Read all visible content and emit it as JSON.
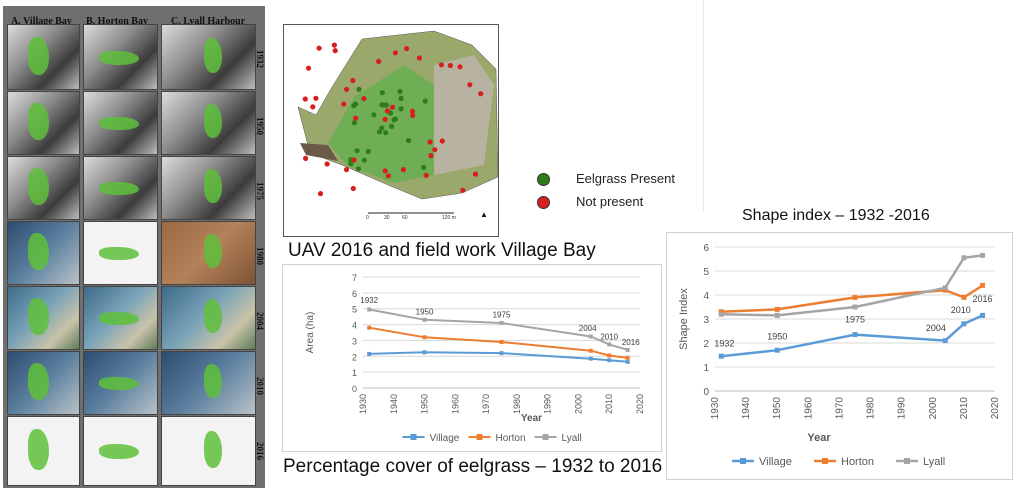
{
  "panels": {
    "col_titles": [
      "A. Village Bay",
      "B. Horton Bay",
      "C. Lyall Harbour"
    ],
    "years": [
      "1932",
      "1950",
      "1975",
      "1980",
      "2004",
      "2010",
      "2016"
    ]
  },
  "uav": {
    "legend_present": "Eelgrass Present",
    "legend_absent": "Not present",
    "present_color": "#2e7d1a",
    "absent_color": "#d62020",
    "scale_labels": [
      "0",
      "30",
      "60",
      "120 m"
    ],
    "caption": "UAV 2016 and field work Village Bay"
  },
  "area_chart": {
    "caption": "Percentage cover of eelgrass – 1932 to 2016",
    "chart_data": {
      "type": "line",
      "ylabel": "Area (ha)",
      "xlabel": "Year",
      "xlim": [
        1930,
        2020
      ],
      "ylim": [
        0,
        7
      ],
      "xticks": [
        1930,
        1940,
        1950,
        1960,
        1970,
        1980,
        1990,
        2000,
        2010,
        2020
      ],
      "yticks": [
        0,
        1,
        2,
        3,
        4,
        5,
        6,
        7
      ],
      "legend": "bottom",
      "series": [
        {
          "name": "Village",
          "color": "#5b9bd5",
          "x": [
            1932,
            1950,
            1975,
            2004,
            2010,
            2016
          ],
          "y": [
            2.15,
            2.25,
            2.2,
            1.85,
            1.75,
            1.65
          ]
        },
        {
          "name": "Horton",
          "color": "#ed7d31",
          "x": [
            1932,
            1950,
            1975,
            2004,
            2010,
            2016
          ],
          "y": [
            3.8,
            3.2,
            2.9,
            2.35,
            2.05,
            1.9
          ]
        },
        {
          "name": "Lyall",
          "color": "#a5a5a5",
          "x": [
            1932,
            1950,
            1975,
            2004,
            2010,
            2016
          ],
          "y": [
            4.95,
            4.3,
            4.1,
            3.25,
            2.75,
            2.4
          ]
        }
      ],
      "annotations": [
        {
          "text": "1932",
          "x": 1932,
          "y": 5.35
        },
        {
          "text": "1950",
          "x": 1950,
          "y": 4.65
        },
        {
          "text": "1975",
          "x": 1975,
          "y": 4.45
        },
        {
          "text": "2004",
          "x": 2003,
          "y": 3.6
        },
        {
          "text": "2010",
          "x": 2010,
          "y": 3.05
        },
        {
          "text": "2016",
          "x": 2017,
          "y": 2.7
        }
      ]
    }
  },
  "shape_chart": {
    "caption": "Shape index – 1932 -2016",
    "chart_data": {
      "type": "line",
      "ylabel": "Shape Index",
      "xlabel": "Year",
      "xlim": [
        1930,
        2020
      ],
      "ylim": [
        0,
        6
      ],
      "xticks": [
        1930,
        1940,
        1950,
        1960,
        1970,
        1980,
        1990,
        2000,
        2010,
        2020
      ],
      "yticks": [
        0,
        1,
        2,
        3,
        4,
        5,
        6
      ],
      "legend": "bottom",
      "series": [
        {
          "name": "Village",
          "color": "#5b9bd5",
          "x": [
            1932,
            1950,
            1975,
            2004,
            2010,
            2016
          ],
          "y": [
            1.45,
            1.7,
            2.35,
            2.1,
            2.8,
            3.15
          ]
        },
        {
          "name": "Horton",
          "color": "#ed7d31",
          "x": [
            1932,
            1950,
            1975,
            2004,
            2010,
            2016
          ],
          "y": [
            3.3,
            3.4,
            3.9,
            4.2,
            3.9,
            4.4
          ]
        },
        {
          "name": "Lyall",
          "color": "#a5a5a5",
          "x": [
            1932,
            1950,
            1975,
            2004,
            2010,
            2016
          ],
          "y": [
            3.2,
            3.15,
            3.5,
            4.3,
            5.55,
            5.65
          ]
        }
      ],
      "annotations": [
        {
          "text": "1932",
          "x": 1933,
          "y": 1.85
        },
        {
          "text": "1950",
          "x": 1950,
          "y": 2.15
        },
        {
          "text": "1975",
          "x": 1975,
          "y": 2.85
        },
        {
          "text": "2004",
          "x": 2001,
          "y": 2.5
        },
        {
          "text": "2010",
          "x": 2009,
          "y": 3.25
        },
        {
          "text": "2016",
          "x": 2016,
          "y": 3.7
        }
      ]
    }
  }
}
